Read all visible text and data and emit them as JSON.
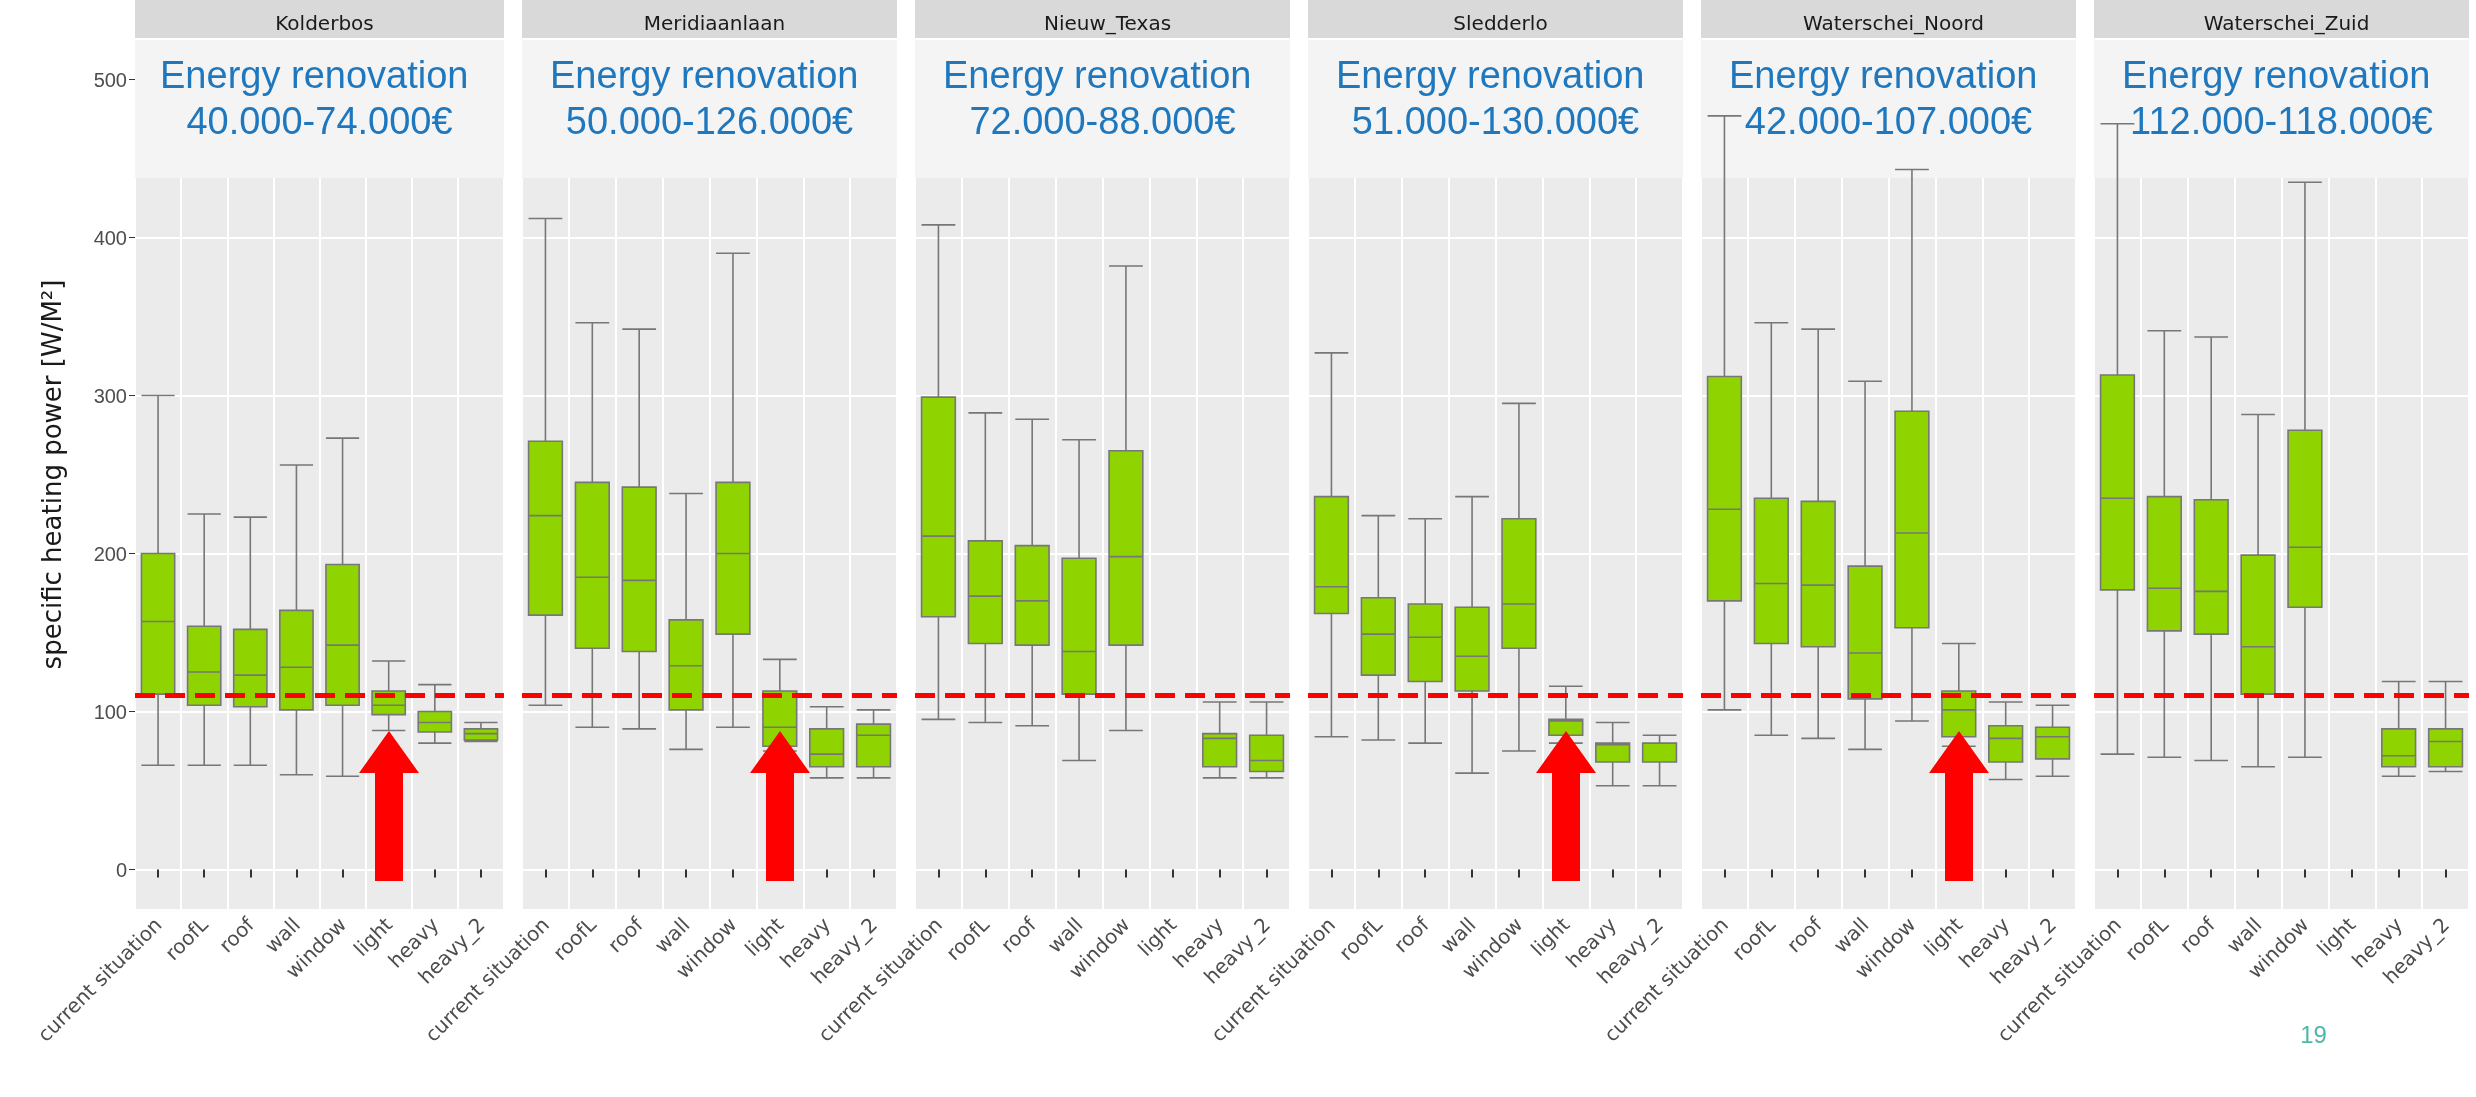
{
  "chart_data": [
    {
      "type": "box",
      "title": "Kolderbos",
      "ylabel": "specific heating power [W/M²]",
      "color": "#8fd400",
      "grid": true,
      "ylim": [
        -25,
        525
      ],
      "yticks": [
        0,
        100,
        200,
        300,
        400,
        500
      ],
      "annotations": [
        "Energy renovation 40.000-74.000€"
      ],
      "ref_lines": [
        {
          "axis": "y",
          "value": 110,
          "color": "#ff0000",
          "line_style": "dashed"
        }
      ],
      "categories": [
        "current situation",
        "roofL",
        "roof",
        "wall",
        "window",
        "light",
        "heavy",
        "heavy_2"
      ],
      "boxes": [
        {
          "low": 66,
          "q1": 111,
          "median": 157,
          "q3": 200,
          "high": 300
        },
        {
          "low": 66,
          "q1": 104,
          "median": 125,
          "q3": 154,
          "high": 225
        },
        {
          "low": 66,
          "q1": 103,
          "median": 123,
          "q3": 152,
          "high": 223
        },
        {
          "low": 60,
          "q1": 101,
          "median": 128,
          "q3": 164,
          "high": 256
        },
        {
          "low": 59,
          "q1": 104,
          "median": 142,
          "q3": 193,
          "high": 273
        },
        {
          "low": 88,
          "q1": 98,
          "median": 104,
          "q3": 113,
          "high": 132
        },
        {
          "low": 80,
          "q1": 87,
          "median": 93,
          "q3": 100,
          "high": 117
        },
        {
          "low": 81,
          "q1": 82,
          "median": 86,
          "q3": 89,
          "high": 93
        }
      ]
    },
    {
      "type": "box",
      "title": "Meridiaanlaan",
      "color": "#8fd400",
      "grid": true,
      "tick_labels": "x",
      "ylim": [
        -25,
        525
      ],
      "yticks": [
        0,
        100,
        200,
        300,
        400,
        500
      ],
      "annotations": [
        "Energy renovation 50.000-126.000€"
      ],
      "ref_lines": [
        {
          "axis": "y",
          "value": 110,
          "color": "#ff0000",
          "line_style": "dashed"
        }
      ],
      "categories": [
        "current situation",
        "roofL",
        "roof",
        "wall",
        "window",
        "light",
        "heavy",
        "heavy_2"
      ],
      "boxes": [
        {
          "low": 104,
          "q1": 161,
          "median": 224,
          "q3": 271,
          "high": 412
        },
        {
          "low": 90,
          "q1": 140,
          "median": 185,
          "q3": 245,
          "high": 346
        },
        {
          "low": 89,
          "q1": 138,
          "median": 183,
          "q3": 242,
          "high": 342
        },
        {
          "low": 76,
          "q1": 101,
          "median": 129,
          "q3": 158,
          "high": 238
        },
        {
          "low": 90,
          "q1": 149,
          "median": 200,
          "q3": 245,
          "high": 390
        },
        {
          "low": 75,
          "q1": 78,
          "median": 90,
          "q3": 113,
          "high": 133
        },
        {
          "low": 58,
          "q1": 65,
          "median": 73,
          "q3": 89,
          "high": 103
        },
        {
          "low": 58,
          "q1": 65,
          "median": 85,
          "q3": 92,
          "high": 101
        }
      ]
    },
    {
      "type": "box",
      "title": "Nieuw_Texas",
      "color": "#8fd400",
      "grid": true,
      "tick_labels": "x",
      "ylim": [
        -25,
        525
      ],
      "yticks": [
        0,
        100,
        200,
        300,
        400,
        500
      ],
      "annotations": [
        "Energy renovation 72.000-88.000€"
      ],
      "ref_lines": [
        {
          "axis": "y",
          "value": 110,
          "color": "#ff0000",
          "line_style": "dashed"
        }
      ],
      "categories": [
        "current situation",
        "roofL",
        "roof",
        "wall",
        "window",
        "light",
        "heavy",
        "heavy_2"
      ],
      "boxes": [
        {
          "low": 95,
          "q1": 160,
          "median": 211,
          "q3": 299,
          "high": 408
        },
        {
          "low": 93,
          "q1": 143,
          "median": 173,
          "q3": 208,
          "high": 289
        },
        {
          "low": 91,
          "q1": 142,
          "median": 170,
          "q3": 205,
          "high": 285
        },
        {
          "low": 69,
          "q1": 111,
          "median": 138,
          "q3": 197,
          "high": 272
        },
        {
          "low": 88,
          "q1": 142,
          "median": 198,
          "q3": 265,
          "high": 382
        },
        null,
        {
          "low": 58,
          "q1": 65,
          "median": 83,
          "q3": 86,
          "high": 106
        },
        {
          "low": 58,
          "q1": 62,
          "median": 69,
          "q3": 85,
          "high": 106
        }
      ]
    },
    {
      "type": "box",
      "title": "Sledderlo",
      "color": "#8fd400",
      "grid": true,
      "tick_labels": "x",
      "ylim": [
        -25,
        525
      ],
      "yticks": [
        0,
        100,
        200,
        300,
        400,
        500
      ],
      "annotations": [
        "Energy renovation 51.000-130.000€"
      ],
      "ref_lines": [
        {
          "axis": "y",
          "value": 110,
          "color": "#ff0000",
          "line_style": "dashed"
        }
      ],
      "categories": [
        "current situation",
        "roofL",
        "roof",
        "wall",
        "window",
        "light",
        "heavy",
        "heavy_2"
      ],
      "boxes": [
        {
          "low": 84,
          "q1": 162,
          "median": 179,
          "q3": 236,
          "high": 327
        },
        {
          "low": 82,
          "q1": 123,
          "median": 149,
          "q3": 172,
          "high": 224
        },
        {
          "low": 80,
          "q1": 119,
          "median": 147,
          "q3": 168,
          "high": 222
        },
        {
          "low": 61,
          "q1": 113,
          "median": 135,
          "q3": 166,
          "high": 236
        },
        {
          "low": 75,
          "q1": 140,
          "median": 168,
          "q3": 222,
          "high": 295
        },
        {
          "low": 80,
          "q1": 85,
          "median": 94,
          "q3": 95,
          "high": 116
        },
        {
          "low": 53,
          "q1": 68,
          "median": 79,
          "q3": 80,
          "high": 93
        },
        {
          "low": 53,
          "q1": 68,
          "median": 80,
          "q3": 80,
          "high": 85
        }
      ]
    },
    {
      "type": "box",
      "title": "Waterschei_Noord",
      "color": "#8fd400",
      "grid": true,
      "tick_labels": "x",
      "ylim": [
        -25,
        525
      ],
      "yticks": [
        0,
        100,
        200,
        300,
        400,
        500
      ],
      "annotations": [
        "Energy renovation 42.000-107.000€"
      ],
      "ref_lines": [
        {
          "axis": "y",
          "value": 110,
          "color": "#ff0000",
          "line_style": "dashed"
        }
      ],
      "categories": [
        "current situation",
        "roofL",
        "roof",
        "wall",
        "window",
        "light",
        "heavy",
        "heavy_2"
      ],
      "boxes": [
        {
          "low": 101,
          "q1": 170,
          "median": 228,
          "q3": 312,
          "high": 477
        },
        {
          "low": 85,
          "q1": 143,
          "median": 181,
          "q3": 235,
          "high": 346
        },
        {
          "low": 83,
          "q1": 141,
          "median": 180,
          "q3": 233,
          "high": 342
        },
        {
          "low": 76,
          "q1": 108,
          "median": 137,
          "q3": 192,
          "high": 309
        },
        {
          "low": 94,
          "q1": 153,
          "median": 213,
          "q3": 290,
          "high": 443
        },
        {
          "low": 78,
          "q1": 84,
          "median": 101,
          "q3": 113,
          "high": 143
        },
        {
          "low": 57,
          "q1": 68,
          "median": 83,
          "q3": 91,
          "high": 106
        },
        {
          "low": 59,
          "q1": 70,
          "median": 84,
          "q3": 90,
          "high": 104
        }
      ]
    },
    {
      "type": "box",
      "title": "Waterschei_Zuid",
      "color": "#8fd400",
      "grid": true,
      "tick_labels": "x",
      "ylim": [
        -25,
        525
      ],
      "yticks": [
        0,
        100,
        200,
        300,
        400,
        500
      ],
      "annotations": [
        "Energy renovation 112.000-118.000€",
        "19"
      ],
      "ref_lines": [
        {
          "axis": "y",
          "value": 110,
          "color": "#ff0000",
          "line_style": "dashed"
        }
      ],
      "categories": [
        "current situation",
        "roofL",
        "roof",
        "wall",
        "window",
        "light",
        "heavy",
        "heavy_2"
      ],
      "boxes": [
        {
          "low": 73,
          "q1": 177,
          "median": 235,
          "q3": 313,
          "high": 472
        },
        {
          "low": 71,
          "q1": 151,
          "median": 178,
          "q3": 236,
          "high": 341
        },
        {
          "low": 69,
          "q1": 149,
          "median": 176,
          "q3": 234,
          "high": 337
        },
        {
          "low": 65,
          "q1": 111,
          "median": 141,
          "q3": 199,
          "high": 288
        },
        {
          "low": 71,
          "q1": 166,
          "median": 204,
          "q3": 278,
          "high": 435
        },
        null,
        {
          "low": 59,
          "q1": 65,
          "median": 72,
          "q3": 89,
          "high": 119
        },
        {
          "low": 62,
          "q1": 65,
          "median": 81,
          "q3": 89,
          "high": 119
        }
      ]
    }
  ]
}
